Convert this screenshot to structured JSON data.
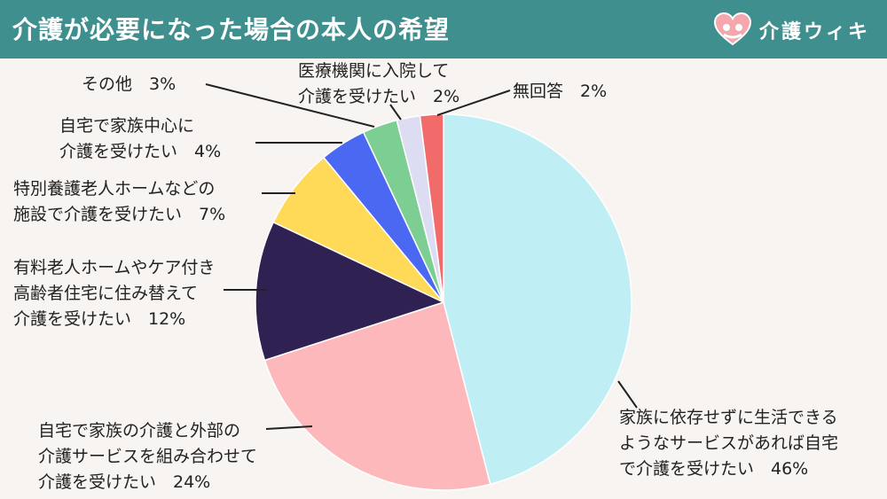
{
  "header": {
    "title": "介護が必要になった場合の本人の希望",
    "brand": "介護ウィキ",
    "bg_color": "#3f8f8f"
  },
  "chart_data": {
    "type": "pie",
    "title": "介護が必要になった場合の本人の希望",
    "start": "top",
    "direction": "clockwise",
    "slices": [
      {
        "label_lines": [
          "家族に依存せずに生活できる",
          "ようなサービスがあれば自宅",
          "で介護を受けたい　46%"
        ],
        "value": 46,
        "color": "#bfeff4"
      },
      {
        "label_lines": [
          "自宅で家族の介護と外部の",
          "介護サービスを組み合わせて",
          "介護を受けたい　24%"
        ],
        "value": 24,
        "color": "#fdb8bb"
      },
      {
        "label_lines": [
          "有料老人ホームやケア付き",
          "高齢者住宅に住み替えて",
          "介護を受けたい　12%"
        ],
        "value": 12,
        "color": "#2f2152"
      },
      {
        "label_lines": [
          "特別養護老人ホームなどの",
          "施設で介護を受けたい　7%"
        ],
        "value": 7,
        "color": "#ffd958"
      },
      {
        "label_lines": [
          "自宅で家族中心に",
          "介護を受けたい　4%"
        ],
        "value": 4,
        "color": "#4b68f2"
      },
      {
        "label_lines": [
          "その他　3%"
        ],
        "value": 3,
        "color": "#7dce92"
      },
      {
        "label_lines": [
          "医療機関に入院して",
          "介護を受けたい　2%"
        ],
        "value": 2,
        "color": "#dcdcf3"
      },
      {
        "label_lines": [
          "無回答　2%"
        ],
        "value": 2,
        "color": "#f26b6b"
      }
    ]
  }
}
